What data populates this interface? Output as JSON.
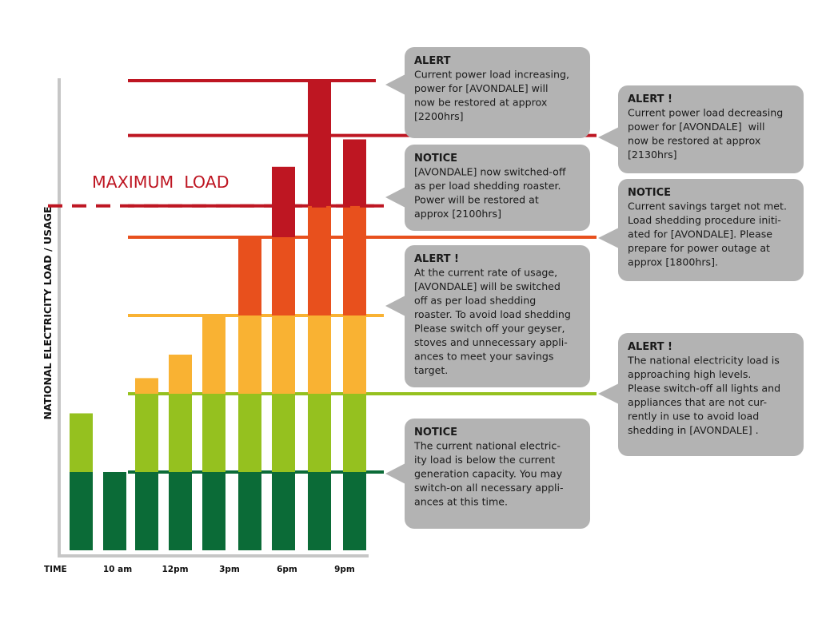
{
  "chart_data": {
    "type": "bar",
    "stacked": true,
    "ylabel": "NATIONAL ELECTRICITY LOAD / USAGE",
    "xlabel": "TIME",
    "tick_labels": [
      "10 am",
      "12pm",
      "3pm",
      "6pm",
      "9pm"
    ],
    "threshold_levels": [
      1.0,
      2.0,
      3.0,
      4.4,
      5.25
    ],
    "max_load_level": 4.4,
    "max_load_label": "MAXIMUM  LOAD",
    "bars": [
      [
        1.0,
        1.75
      ],
      [
        1.0
      ],
      [
        1.0,
        2.0,
        2.2
      ],
      [
        1.0,
        2.0,
        2.5
      ],
      [
        1.0,
        2.0,
        3.0
      ],
      [
        1.0,
        2.0,
        3.0,
        4.0
      ],
      [
        1.0,
        2.0,
        3.0,
        4.0,
        4.4,
        4.9
      ],
      [
        1.0,
        2.0,
        3.0,
        4.4,
        6.0
      ],
      [
        1.0,
        2.0,
        3.0,
        4.4,
        5.25
      ]
    ],
    "colors": {
      "level1": "#0b6b37",
      "level2": "#95c11f",
      "level3": "#f9b233",
      "level4": "#e8501d",
      "level5": "#be1622",
      "axis": "#c6c6c6",
      "box": "#b3b3b3"
    },
    "annotations": [
      {
        "title": "NOTICE",
        "lines": [
          "The current national electric-",
          "ity load is below the current",
          "generation capacity. You may",
          "switch-on all necessary appli-",
          "ances at this time."
        ]
      },
      {
        "title": "ALERT !",
        "lines": [
          "The national electricity load is",
          "approaching high levels.",
          "Please switch-off all lights and",
          "appliances that are not cur-",
          "rently in use to avoid load",
          "shedding in [AVONDALE] ."
        ]
      },
      {
        "title": "ALERT !",
        "lines": [
          "At the current rate of usage,",
          "[AVONDALE] will be switched",
          "off as per load shedding",
          "roaster. To avoid load shedding",
          "Please switch off your geyser,",
          "stoves and unnecessary appli-",
          "ances to meet your savings",
          "target."
        ]
      },
      {
        "title": "NOTICE",
        "lines": [
          "Current savings target not met.",
          "Load shedding procedure initi-",
          "ated for [AVONDALE]. Please",
          "prepare for power outage at",
          "approx [1800hrs]."
        ]
      },
      {
        "title": "NOTICE",
        "lines": [
          "[AVONDALE] now switched-off",
          "as per load shedding roaster.",
          "Power will be restored at",
          "approx [2100hrs]"
        ]
      },
      {
        "title": "ALERT !",
        "lines": [
          "Current power load decreasing",
          "power for [AVONDALE]  will",
          "now be restored at approx",
          "[2130hrs]"
        ]
      },
      {
        "title": "ALERT",
        "lines": [
          "Current power load increasing,",
          "power for [AVONDALE] will",
          "now be restored at approx",
          "[2200hrs]"
        ]
      }
    ]
  }
}
